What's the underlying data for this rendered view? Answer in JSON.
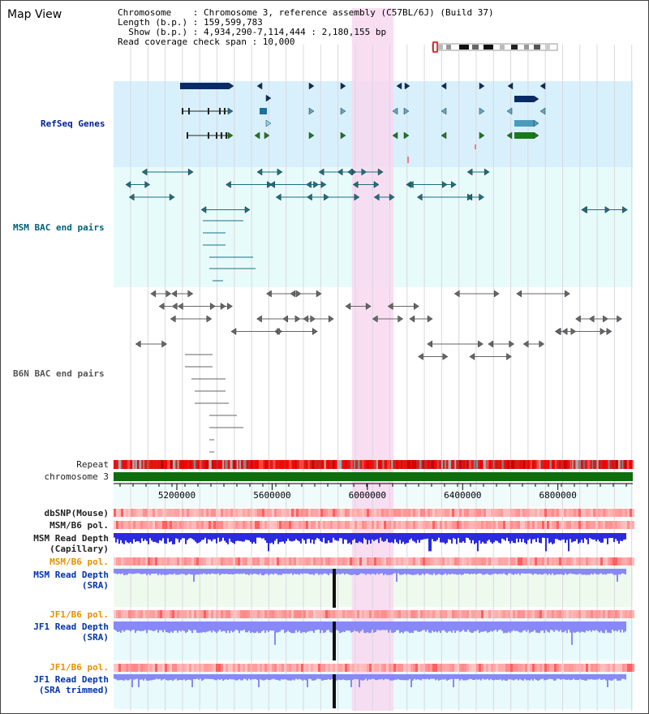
{
  "title": "Map View",
  "info": {
    "chromosome": "Chromosome    : Chromosome 3, reference assembly (C57BL/6J) (Build 37)",
    "length": "Length (b.p.) : 159,599,783",
    "show": "  Show (b.p.) : 4,934,290-7,114,444 : 2,180,155 bp",
    "coverage": "Read coverage check span : 10,000"
  },
  "tracks": {
    "refseq": "RefSeq Genes",
    "msm_bac": "MSM BAC end pairs",
    "b6n_bac": "B6N BAC end pairs",
    "repeat": "Repeat",
    "chromosome": "chromosome 3",
    "dbsnp": "dbSNP(Mouse)",
    "msm_b6_pol_1": "MSM/B6 pol.",
    "msm_read_depth_cap": "MSM Read Depth\n(Capillary)",
    "msm_b6_pol_2": "MSM/B6 pol.",
    "msm_read_depth_sra": "MSM Read Depth\n(SRA)",
    "jf1_b6_pol_1": "JF1/B6 pol.",
    "jf1_read_depth_sra": "JF1 Read Depth\n(SRA)",
    "jf1_b6_pol_2": "JF1/B6 pol.",
    "jf1_read_depth_trimmed": "JF1 Read Depth\n(SRA trimmed)"
  },
  "axis": {
    "ticks": [
      "5200000",
      "5600000",
      "6000000",
      "6400000",
      "6800000"
    ],
    "tick_values": [
      5200000,
      5600000,
      6000000,
      6400000,
      6800000
    ],
    "start": 4934290,
    "end": 7114444
  },
  "highlight": {
    "start": 5935000,
    "end": 6110000
  },
  "colors": {
    "refseq_bg": "#d8f0fb",
    "msm_bg": "#e8fbfb",
    "highlight": "#f8d8f0",
    "gene_dark": "#0a2a66",
    "gene_mid": "#1e6f9c",
    "gene_green": "#1a7a1a",
    "msm_line": "#1a6f80",
    "b6n_line": "#666666",
    "chromosome": "#0e6e0e",
    "depth_blue": "#2a2ae0",
    "depth_light": "#8888f8"
  }
}
